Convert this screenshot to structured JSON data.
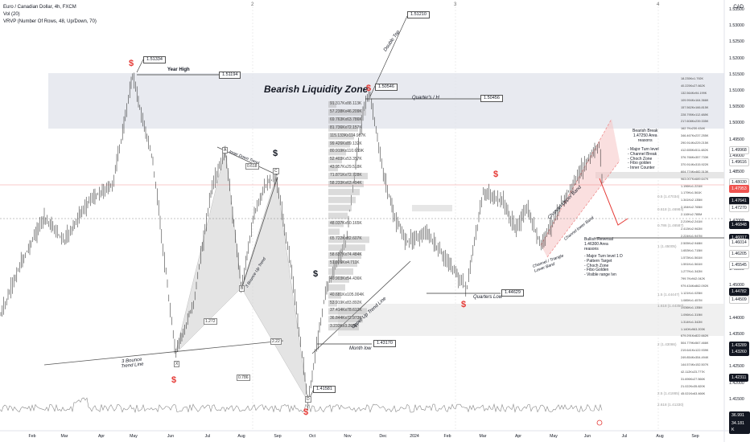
{
  "header": {
    "symbol": "Euro / Canadian Dollar, 4h, FXCM",
    "vol": "Vol (20)",
    "vrvp": "VRVP (Number Of Rows, 48, Up/Down, 70)",
    "currency": "CAD"
  },
  "y_axis": {
    "ticks": [
      "1.53500",
      "1.53000",
      "1.52500",
      "1.52000",
      "1.51500",
      "1.51000",
      "1.50500",
      "1.50000",
      "1.49500",
      "1.49000",
      "1.48500",
      "1.48000",
      "1.47500",
      "1.47000",
      "1.46500",
      "1.46000",
      "1.45500",
      "1.45000",
      "1.44500",
      "1.44000",
      "1.43500",
      "1.43000",
      "1.42500",
      "1.42000",
      "1.41500",
      "1.41000",
      "1.40500"
    ]
  },
  "price_badges": [
    "1.49968",
    "1.49616",
    "1.48030",
    "1.47953",
    "1.47641",
    "1.47270",
    "1.46848",
    "1.46017",
    "1.46014",
    "1.46205",
    "1.45545",
    "1.44782",
    "1.44509",
    "1.43289",
    "1.43260",
    "1.42311",
    "36.991 K",
    "34.181 K"
  ],
  "x_axis": {
    "labels": [
      "Feb",
      "Mar",
      "Apr",
      "May",
      "Jun",
      "Jul",
      "Aug",
      "Sep",
      "Oct",
      "Nov",
      "Dec",
      "2024",
      "Feb",
      "Mar",
      "Apr",
      "May",
      "Jun",
      "Jul",
      "Aug",
      "Sep"
    ]
  },
  "pane_markers": [
    "2",
    "3",
    "4"
  ],
  "annotations": {
    "year_high": "Year High",
    "year_high_price": "1.51194",
    "peak_price": "1.51334",
    "bearish_zone": "Bearish Liquidity Zone",
    "double_top": "Double Top",
    "double_top_price": "1.51210",
    "top2_price": "1.50546",
    "quarters_high": "Quarter's / H",
    "quarters_high_price": "1.50456",
    "quarters_low": "Quarters Low",
    "quarters_low_price": "1.44629",
    "month_low": "Month low",
    "month_low_price": "1.43170",
    "bottom_price": "1.41581",
    "inner_down_trend": "Inner Down Trend",
    "bounce3_up_trend": "3 Bounce Up Trend",
    "bounce3_trend_line": "3 Bounce\nTrend Line",
    "upper_up_trend": "Upper Up Trend Line",
    "channel_upper": "Channel Upper Band",
    "channel_lower": "Channel lower Band",
    "channel_triangle": "Channel / Triangle\nLower Band",
    "bearish_break": "Bearish Break\n1.47250 Area\nreasons",
    "bearish_reasons": "- Major Turn level\n- Channel Break\n- Choch Zone\n- Fibo golden\n- Inner Counter",
    "bullish_reversal": "Bullish Reversal\n1.46300 Area\nreasons",
    "bullish_reasons": "- Major Turn level 1 D\n- Pattern Target\n- Choch Zone\n- Fibo Golden\n- Visible range Ivn",
    "wave_a": "A",
    "wave_b": "B",
    "wave_c": "C",
    "wave_x": "X",
    "wave_d": "D",
    "ratio_1": "0.618",
    "ratio_2": "1.272",
    "ratio_3": "0.786",
    "ratio_4": "2.22",
    "dollar": "$"
  },
  "vrvp_rows": [
    "91.317Kx88.113K",
    "57.238Kx46.209K",
    "69.763Kx63.786K",
    "81.736Kx72.157K",
    "115.133Kx114.987K",
    "99.426Kx89.132K",
    "80.919Kx110.659K",
    "52.403Kx53.357K",
    "43.957Kx29.518K",
    "71.871Kx72.728K",
    "58.233Kx63.494K",
    "",
    "",
    "",
    "",
    "48.037Kx50.165K",
    "",
    "65.722Kx82.607K",
    "",
    "58.637Kx74.484K",
    "51.026Kx4.711K",
    "",
    "40.903Kx54.436K",
    "",
    "40.681Kx105.004K",
    "53.919Kx83.892K",
    "37.414Kx78.612K",
    "36.844Kx72.973K",
    "3.233Kx3.209K"
  ],
  "right_vrvp_rows": [
    "18.235Kx1.792K",
    "40.225Kx27.662K",
    "132.564Kx94.199K",
    "109.994Kx164.366K",
    "157.562Kx166.815K",
    "228.795Kx112.488K",
    "217.608Kx239.335K",
    "162.7Kx230.434K",
    "346.467Kx237.255K",
    "290.914Kx229.215K",
    "412.655Kx511.482K",
    "376.766Kx357.733K",
    "370.914Kx315.922K",
    "604.774Kx482.313K",
    "963.007Kx689.647K",
    "1.196Kx1.221M",
    "1.179Kx1.561K",
    "1.341Kx2.135M",
    "2.154Kx2.765M",
    "2.110Kx2.785M",
    "2.219Kx2.241M",
    "2.413Kx2.962M",
    "2.224Kx1.947M",
    "2.505Kx2.948M",
    "1.653Kx1.715M",
    "1.573Kx1.561M",
    "1.591Kx1.561M",
    "1.277Kx1.342M",
    "799.7Kx942.042K",
    "979.434Kx862.092K",
    "1.121Kx1.025M",
    "1.085Kx1.457M",
    "1.036Kx1.135M",
    "1.096Kx1.319M",
    "1.314Kx1.342M",
    "1.140Kx963.203K",
    "679.291Kx822.662K",
    "504.779Kx567.466K",
    "219.641Kx122.939K",
    "249.854Kx354.494K",
    "144.574Kx152.507K",
    "42.112Kx23.777K",
    "31.696Kx27.566K",
    "21.022Kx35.820K",
    "45.021Kx63.466K"
  ],
  "fib_levels": [
    "0.5 (1.47034)",
    "0.618 (1.46984)",
    "0.786 (1.46587)",
    "1 (1.45005)",
    "1.5 (1.44447)",
    "1.618 (1.44350)",
    "2 (1.43086)",
    "2.5 (1.41865)",
    "2.618 (1.41330)"
  ],
  "colors": {
    "up": "#26a69a",
    "down": "#ef5350",
    "line": "#131722",
    "zone": "#e0e3eb",
    "channel": "#f5c4c4",
    "dollar_red": "#e53935",
    "dollar_black": "#131722"
  }
}
